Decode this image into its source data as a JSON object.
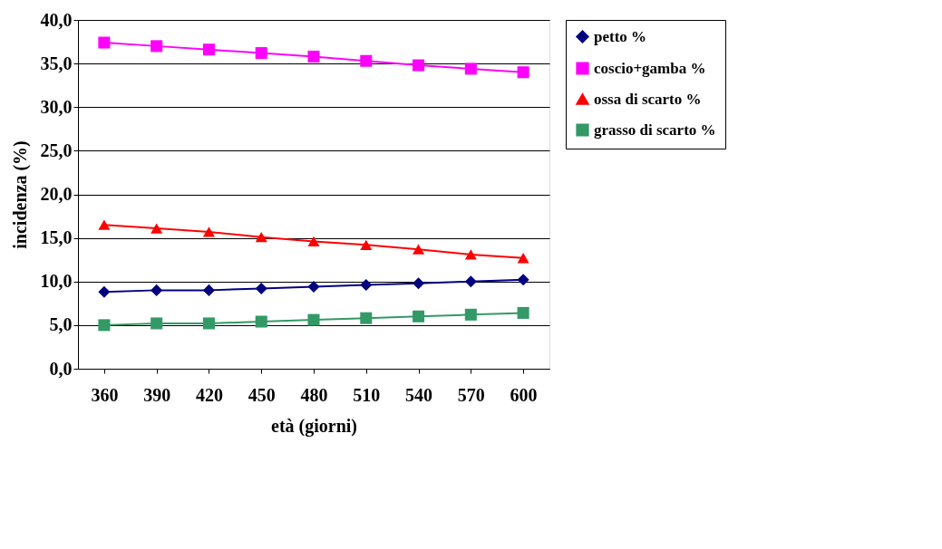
{
  "chart_data": {
    "type": "line",
    "xlabel": "età (giorni)",
    "ylabel": "incidenza (%)",
    "categories": [
      "360",
      "390",
      "420",
      "450",
      "480",
      "510",
      "540",
      "570",
      "600"
    ],
    "series": [
      {
        "name": "petto %",
        "color": "#000080",
        "marker": "diamond",
        "values": [
          8.8,
          9.0,
          9.0,
          9.2,
          9.4,
          9.6,
          9.8,
          10.0,
          10.2
        ]
      },
      {
        "name": "coscio+gamba %",
        "color": "#ff00ff",
        "marker": "square",
        "values": [
          37.4,
          37.0,
          36.6,
          36.2,
          35.8,
          35.3,
          34.8,
          34.4,
          34.0
        ]
      },
      {
        "name": "ossa di scarto %",
        "color": "#ff0000",
        "marker": "triangle",
        "values": [
          16.5,
          16.1,
          15.7,
          15.1,
          14.6,
          14.2,
          13.7,
          13.1,
          12.7
        ]
      },
      {
        "name": "grasso di scarto %",
        "color": "#339966",
        "marker": "square",
        "values": [
          5.0,
          5.2,
          5.2,
          5.4,
          5.6,
          5.8,
          6.0,
          6.2,
          6.4
        ]
      }
    ],
    "ylim": [
      0,
      40
    ],
    "yticks": [
      {
        "value": 0,
        "label": "0,0"
      },
      {
        "value": 5,
        "label": "5,0"
      },
      {
        "value": 10,
        "label": "10,0"
      },
      {
        "value": 15,
        "label": "15,0"
      },
      {
        "value": 20,
        "label": "20,0"
      },
      {
        "value": 25,
        "label": "25,0"
      },
      {
        "value": 30,
        "label": "30,0"
      },
      {
        "value": 35,
        "label": "35,0"
      },
      {
        "value": 40,
        "label": "40,0"
      }
    ],
    "grid": "y",
    "legend": "right",
    "line_style": "solid"
  }
}
